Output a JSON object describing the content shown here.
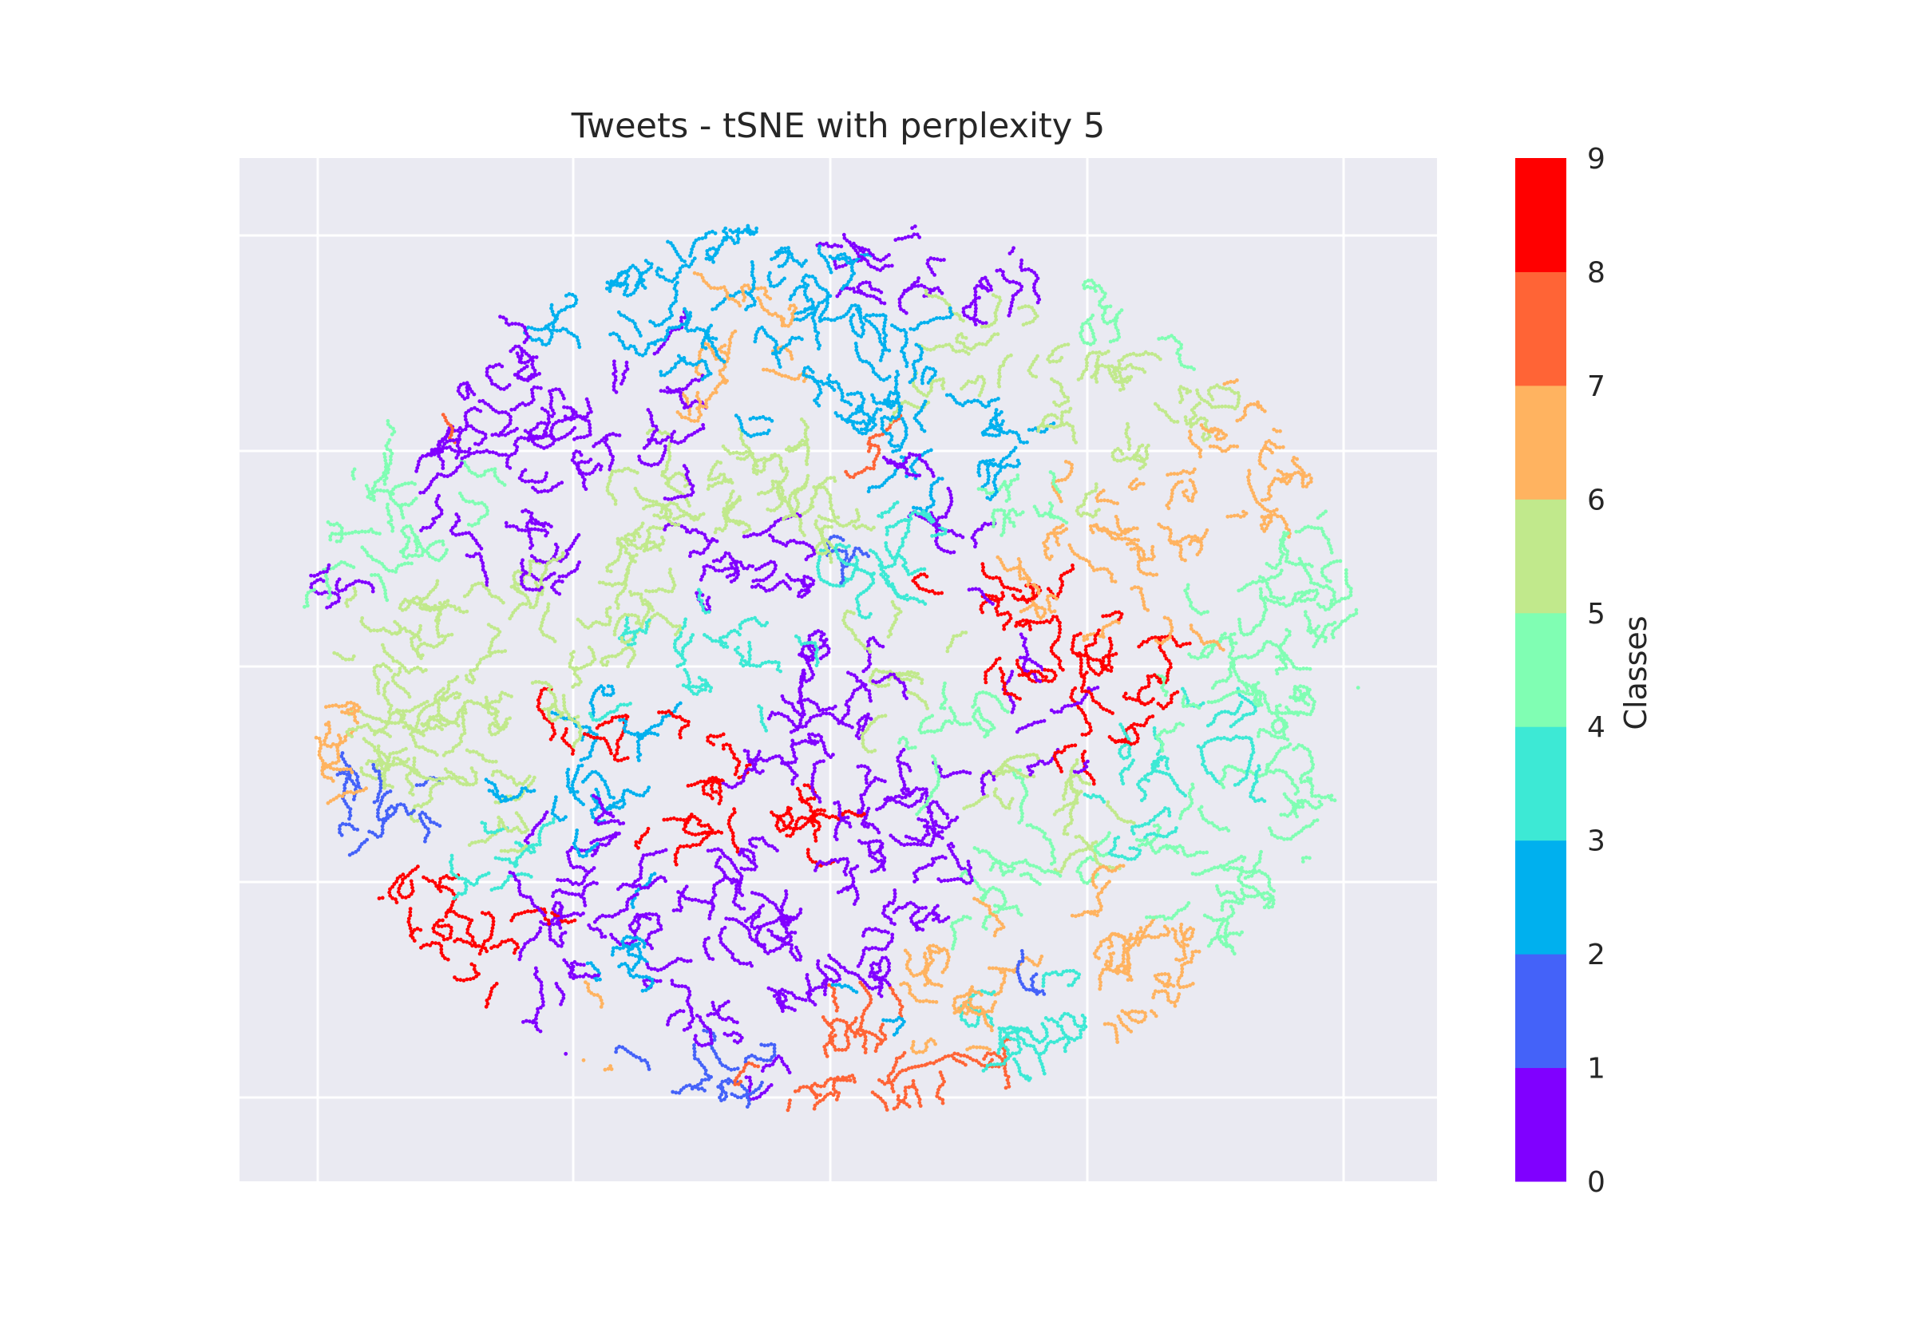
{
  "chart_data": {
    "type": "scatter",
    "title": "Tweets - tSNE with perplexity 5",
    "xlabel": "",
    "ylabel": "",
    "grid": true,
    "axis_tick_labels_visible": false,
    "background": "#EAEAF2",
    "colorbar": {
      "label": "Classes",
      "ticks": [
        "0",
        "1",
        "2",
        "3",
        "4",
        "5",
        "6",
        "7",
        "8",
        "9"
      ],
      "colors": [
        "#8000FF",
        "#4462F9",
        "#00B0EE",
        "#3DE9D5",
        "#80FEB3",
        "#C1E98C",
        "#FFB360",
        "#FF6436",
        "#FF0000"
      ]
    },
    "series": [
      {
        "class": 0,
        "color": "#8000FF"
      },
      {
        "class": 1,
        "color": "#4462F9"
      },
      {
        "class": 2,
        "color": "#00B0EE"
      },
      {
        "class": 3,
        "color": "#3DE9D5"
      },
      {
        "class": 4,
        "color": "#80FEB3"
      },
      {
        "class": 5,
        "color": "#C1E98C"
      },
      {
        "class": 6,
        "color": "#FFB360"
      },
      {
        "class": 7,
        "color": "#FF6436"
      },
      {
        "class": 8,
        "color": "#FF0000"
      }
    ]
  }
}
